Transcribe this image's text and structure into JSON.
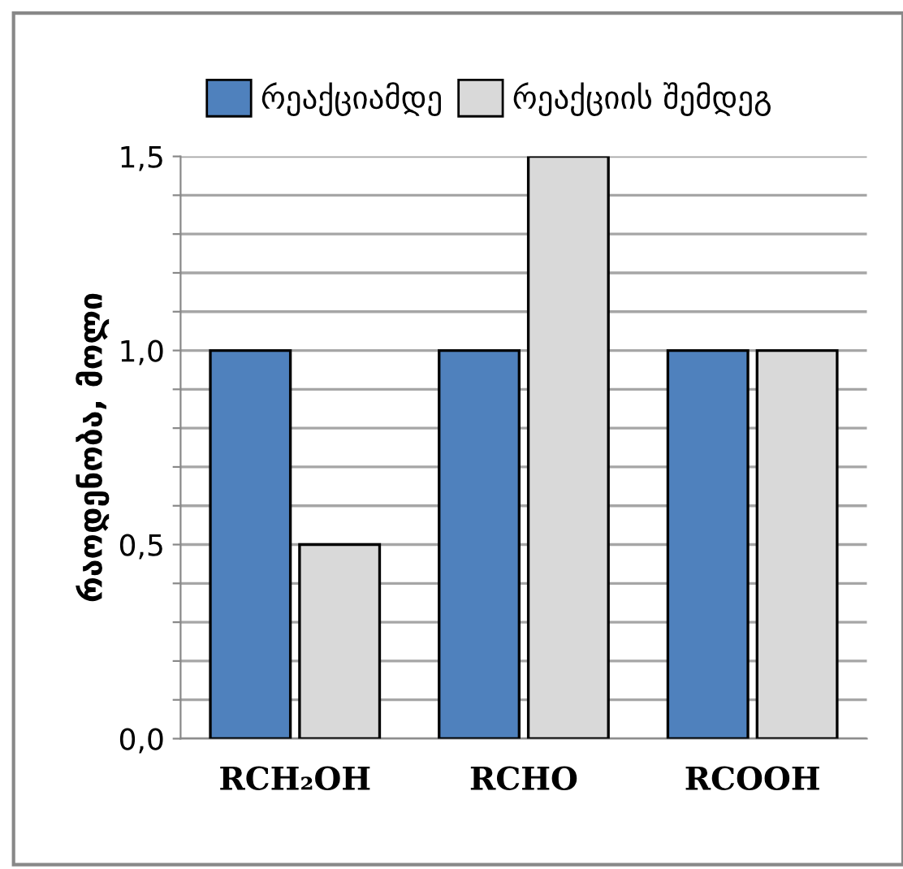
{
  "chart_data": {
    "type": "bar",
    "ylabel": "რაოდენობა, მოლი",
    "categories": [
      "RCH₂OH",
      "RCHO",
      "RCOOH"
    ],
    "series": [
      {
        "name": "რეაქციამდე",
        "color": "#4f81bd",
        "values": [
          1.0,
          1.0,
          1.0
        ]
      },
      {
        "name": "რეაქციის შემდეგ",
        "color": "#d9d9d9",
        "values": [
          0.5,
          1.5,
          1.0
        ]
      }
    ],
    "ylim": [
      0,
      1.5
    ],
    "yticks": [
      {
        "value": 0,
        "label": "0,0"
      },
      {
        "value": 0.1,
        "label": null
      },
      {
        "value": 0.2,
        "label": null
      },
      {
        "value": 0.3,
        "label": null
      },
      {
        "value": 0.4,
        "label": null
      },
      {
        "value": 0.5,
        "label": "0,5"
      },
      {
        "value": 0.6,
        "label": null
      },
      {
        "value": 0.7,
        "label": null
      },
      {
        "value": 0.8,
        "label": null
      },
      {
        "value": 0.9,
        "label": null
      },
      {
        "value": 1.0,
        "label": "1,0"
      },
      {
        "value": 1.1,
        "label": null
      },
      {
        "value": 1.2,
        "label": null
      },
      {
        "value": 1.3,
        "label": null
      },
      {
        "value": 1.4,
        "label": null
      },
      {
        "value": 1.5,
        "label": "1,5"
      }
    ],
    "grid": "y",
    "legend": "top"
  }
}
